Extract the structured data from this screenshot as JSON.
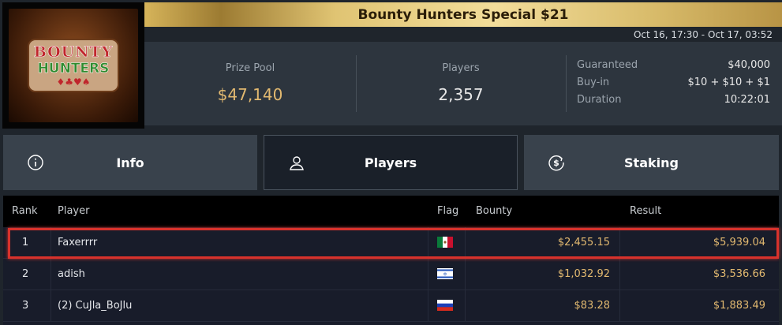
{
  "logo": {
    "text_line1": "BOUNTY",
    "text_line2": "HUNTERS"
  },
  "header": {
    "title": "Bounty Hunters Special $21",
    "dates": "Oct 16, 17:30 - Oct 17, 03:52"
  },
  "stats": {
    "prize_pool_label": "Prize Pool",
    "prize_pool": "$47,140",
    "players_label": "Players",
    "players": "2,357",
    "guaranteed_label": "Guaranteed",
    "guaranteed": "$40,000",
    "buyin_label": "Buy-in",
    "buyin": "$10 + $10 + $1",
    "duration_label": "Duration",
    "duration": "10:22:01"
  },
  "colors": {
    "gold": "#e2b970",
    "highlight": "#d8322c"
  },
  "tabs": [
    {
      "label": "Info",
      "icon": "info-icon"
    },
    {
      "label": "Players",
      "icon": "user-icon",
      "active": true
    },
    {
      "label": "Staking",
      "icon": "dollar-cycle-icon"
    }
  ],
  "table": {
    "headers": {
      "rank": "Rank",
      "player": "Player",
      "flag": "Flag",
      "bounty": "Bounty",
      "result": "Result"
    },
    "rows": [
      {
        "rank": "1",
        "player": "Faxerrrr",
        "flag": "Mexico",
        "bounty": "$2,455.15",
        "result": "$5,939.04",
        "highlighted": true
      },
      {
        "rank": "2",
        "player": "adish",
        "flag": "Israel",
        "bounty": "$1,032.92",
        "result": "$3,536.66"
      },
      {
        "rank": "3",
        "player": "(2) CuJla_BoJlu",
        "flag": "Russia",
        "bounty": "$83.28",
        "result": "$1,883.49"
      }
    ]
  }
}
